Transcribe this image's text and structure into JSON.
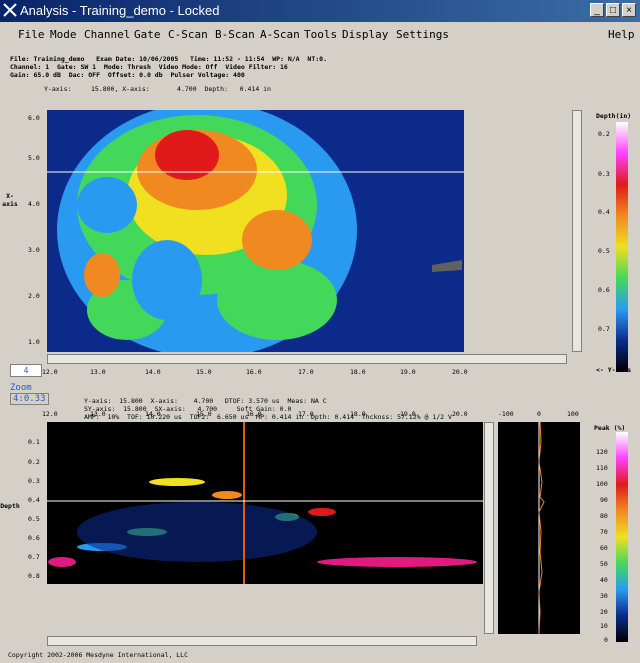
{
  "window": {
    "title": "Analysis - Training_demo - Locked"
  },
  "menu": [
    "File",
    "Mode",
    "Channel",
    "Gate",
    "C-Scan",
    "B-Scan",
    "A-Scan",
    "Tools",
    "Display",
    "Settings",
    "Help"
  ],
  "info_lines": [
    "File: Training_demo   Exam Date: 10/06/2005   Time: 11:52 - 11:54  WP: N/A  NT:0.",
    "Channel: 1  Gate: SW 1  Mode: Thresh  Video Mode: Off  Video Filter: 16",
    "Gain: 65.0 dB  Dac: OFF  Offset: 0.0 db  Pulser Voltage: 400"
  ],
  "cursor_readout": "Y-axis:     15.800, X-axis:       4.700  Depth:   0.414 in",
  "cscan": {
    "x_ticks": [
      "12.0",
      "13.0",
      "14.0",
      "15.0",
      "16.0",
      "17.0",
      "18.0",
      "19.0",
      "20.0"
    ],
    "y_ticks": [
      "6.0",
      "5.0",
      "4.0",
      "3.0",
      "2.0",
      "1.0"
    ],
    "y_label": "X-axis",
    "colorbar_title": "Depth(in)",
    "colorbar_ticks": [
      "0.2",
      "0.3",
      "0.4",
      "0.5",
      "0.6",
      "0.7"
    ],
    "colorbar_foot": "<- Y-axis"
  },
  "page_box": "4",
  "zoom": {
    "label": "Zoom",
    "value": "4:0.33"
  },
  "readout2": [
    "Y-axis:  15.800  X-axis:    4.700   DTOF: 3.570 us  Meas: NA C",
    "SY-axis:  15.800  SX-axis:   4.700     Soft Gain: 0.0",
    "AMP:  10%  TOF: 10.220 us  TOF2:  6.650 us  MP: 0.414 in  Dpth: 0.414  Thcknss: 57.12% @ 1/2 V"
  ],
  "bscan": {
    "x_ticks": [
      "12.0",
      "13.0",
      "14.0",
      "15.0",
      "16.0",
      "17.0",
      "18.0",
      "19.0",
      "20.0"
    ],
    "y_ticks": [
      "0.1",
      "0.2",
      "0.3",
      "0.4",
      "0.5",
      "0.6",
      "0.7",
      "0.8"
    ],
    "y_label": "Depth"
  },
  "ascan": {
    "x_ticks": [
      "-100",
      "0",
      "100"
    ]
  },
  "peak": {
    "title": "Peak  (%)",
    "ticks": [
      "120",
      "110",
      "100",
      "90",
      "80",
      "70",
      "60",
      "50",
      "40",
      "30",
      "20",
      "10",
      "0"
    ]
  },
  "colors": {
    "title_start": "#0a246a",
    "title_end": "#3a6ea5",
    "cscan_bg": "#0b2a8a",
    "link": "#2a5ac8"
  },
  "footer": "Copyright 2002-2006 Mesdyne International, LLC"
}
